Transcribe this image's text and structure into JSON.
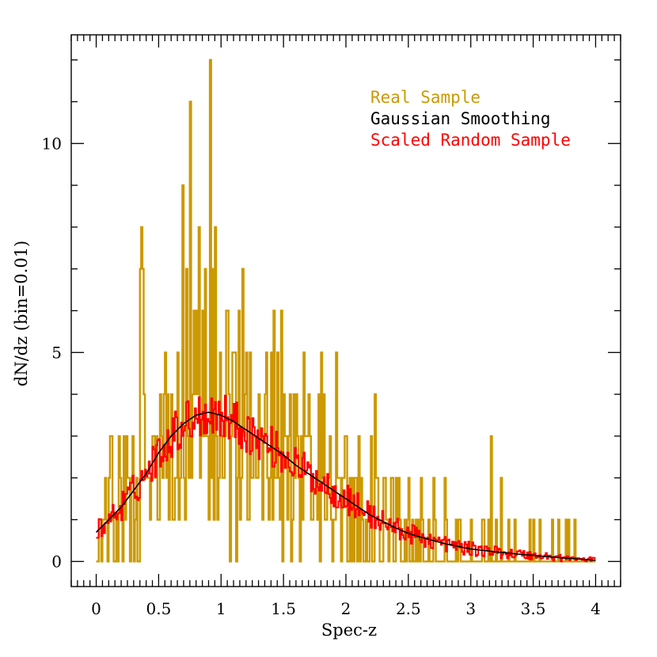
{
  "chart_data": {
    "type": "histogram",
    "xlabel": "Spec-z",
    "ylabel": "dN/dz (bin=0.01)",
    "xlim": [
      -0.2,
      4.2
    ],
    "ylim": [
      -0.6,
      12.6
    ],
    "xticks": [
      0,
      0.5,
      1,
      1.5,
      2,
      2.5,
      3,
      3.5,
      4
    ],
    "xtick_labels": [
      "0",
      "0.5",
      "1",
      "1.5",
      "2",
      "2.5",
      "3",
      "3.5",
      "4"
    ],
    "yticks": [
      0,
      5,
      10
    ],
    "ytick_labels": [
      "0",
      "5",
      "10"
    ],
    "bin_width": 0.01,
    "legend_position": "top-right",
    "colors": {
      "real": "#cc9900",
      "smooth": "#000000",
      "random": "#ff0000"
    },
    "series": [
      {
        "name": "Real Sample",
        "style": "histogram",
        "peaks": [
          {
            "z": 0.1,
            "y": 2
          },
          {
            "z": 0.12,
            "y": 3
          },
          {
            "z": 0.18,
            "y": 3
          },
          {
            "z": 0.25,
            "y": 2
          },
          {
            "z": 0.35,
            "y": 7
          },
          {
            "z": 0.36,
            "y": 8
          },
          {
            "z": 0.37,
            "y": 7
          },
          {
            "z": 0.45,
            "y": 3
          },
          {
            "z": 0.55,
            "y": 5
          },
          {
            "z": 0.6,
            "y": 4
          },
          {
            "z": 0.65,
            "y": 5
          },
          {
            "z": 0.69,
            "y": 9
          },
          {
            "z": 0.72,
            "y": 7
          },
          {
            "z": 0.75,
            "y": 11
          },
          {
            "z": 0.78,
            "y": 6
          },
          {
            "z": 0.82,
            "y": 8
          },
          {
            "z": 0.85,
            "y": 6
          },
          {
            "z": 0.87,
            "y": 7
          },
          {
            "z": 0.91,
            "y": 12
          },
          {
            "z": 0.93,
            "y": 7
          },
          {
            "z": 0.95,
            "y": 8
          },
          {
            "z": 0.99,
            "y": 5
          },
          {
            "z": 1.05,
            "y": 6
          },
          {
            "z": 1.1,
            "y": 5
          },
          {
            "z": 1.14,
            "y": 6
          },
          {
            "z": 1.17,
            "y": 7
          },
          {
            "z": 1.2,
            "y": 5
          },
          {
            "z": 1.3,
            "y": 4
          },
          {
            "z": 1.35,
            "y": 4
          },
          {
            "z": 1.45,
            "y": 5
          },
          {
            "z": 1.5,
            "y": 4
          },
          {
            "z": 1.55,
            "y": 4
          },
          {
            "z": 1.6,
            "y": 4
          },
          {
            "z": 1.7,
            "y": 4
          },
          {
            "z": 1.8,
            "y": 5
          },
          {
            "z": 1.82,
            "y": 4
          },
          {
            "z": 1.92,
            "y": 5
          },
          {
            "z": 2.0,
            "y": 3
          },
          {
            "z": 2.1,
            "y": 3
          },
          {
            "z": 2.2,
            "y": 3
          },
          {
            "z": 2.3,
            "y": 2
          },
          {
            "z": 2.4,
            "y": 2
          },
          {
            "z": 2.5,
            "y": 2
          },
          {
            "z": 2.6,
            "y": 2
          },
          {
            "z": 2.7,
            "y": 2
          },
          {
            "z": 2.8,
            "y": 1
          },
          {
            "z": 2.9,
            "y": 1
          },
          {
            "z": 3.0,
            "y": 1
          },
          {
            "z": 3.1,
            "y": 1
          },
          {
            "z": 3.2,
            "y": 1
          },
          {
            "z": 3.3,
            "y": 1
          },
          {
            "z": 3.35,
            "y": 1
          },
          {
            "z": 3.5,
            "y": 1
          },
          {
            "z": 3.65,
            "y": 1
          },
          {
            "z": 3.7,
            "y": 1
          }
        ]
      },
      {
        "name": "Gaussian Smoothing",
        "style": "line",
        "x": [
          0,
          0.1,
          0.2,
          0.3,
          0.4,
          0.5,
          0.6,
          0.7,
          0.8,
          0.9,
          1.0,
          1.1,
          1.2,
          1.3,
          1.4,
          1.5,
          1.6,
          1.7,
          1.8,
          1.9,
          2.0,
          2.1,
          2.2,
          2.3,
          2.4,
          2.5,
          2.6,
          2.7,
          2.8,
          2.9,
          3.0,
          3.2,
          3.4,
          3.6,
          3.8,
          4.0
        ],
        "y": [
          0.7,
          1.0,
          1.3,
          1.7,
          2.1,
          2.6,
          3.0,
          3.3,
          3.5,
          3.57,
          3.5,
          3.35,
          3.15,
          2.95,
          2.75,
          2.55,
          2.3,
          2.1,
          1.9,
          1.7,
          1.5,
          1.3,
          1.1,
          0.95,
          0.8,
          0.67,
          0.58,
          0.5,
          0.42,
          0.36,
          0.3,
          0.23,
          0.17,
          0.12,
          0.07,
          0.03
        ]
      },
      {
        "name": "Scaled Random Sample",
        "style": "histogram",
        "noise": 0.3
      }
    ]
  }
}
